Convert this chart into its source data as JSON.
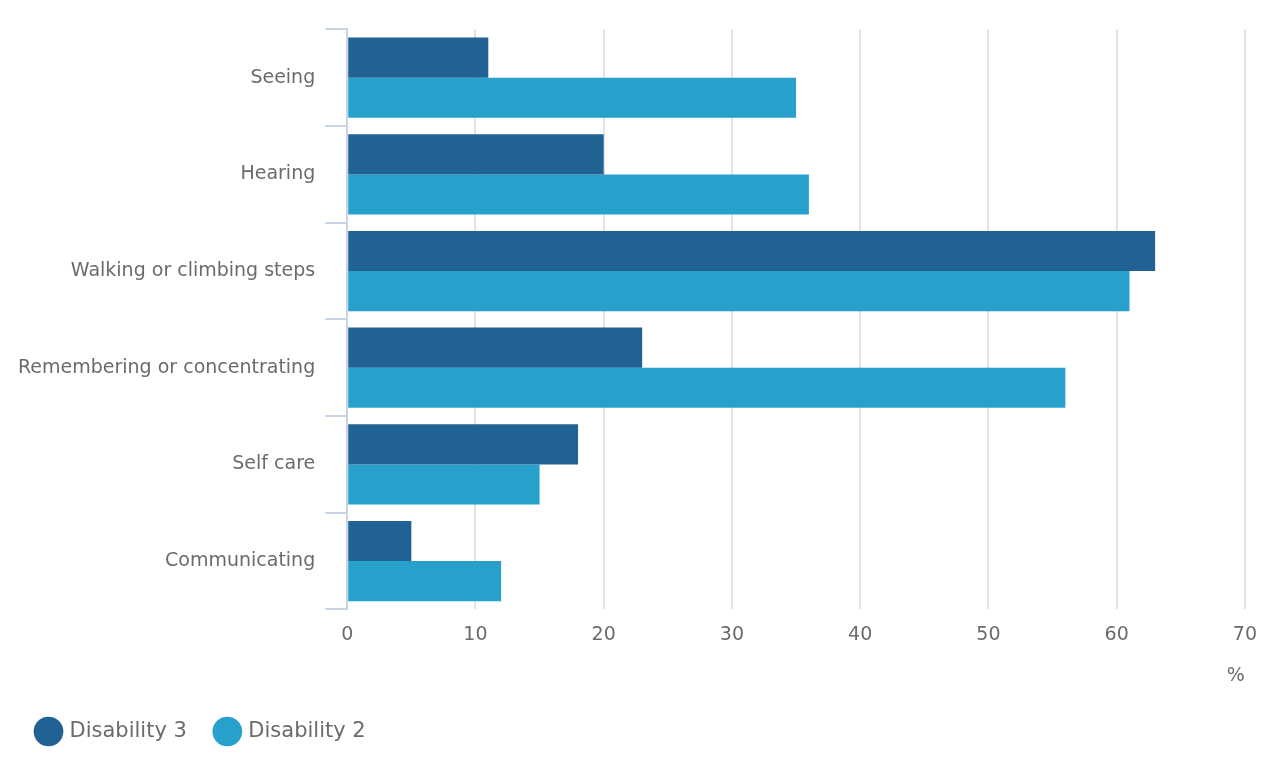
{
  "chart_data": {
    "type": "bar",
    "orientation": "horizontal",
    "xlabel": "%",
    "categories": [
      "Seeing",
      "Hearing",
      "Walking or climbing steps",
      "Remembering or concentrating",
      "Self care",
      "Communicating"
    ],
    "series": [
      {
        "name": "Disability 3",
        "color": "#216294",
        "values": [
          11,
          20,
          63,
          23,
          18,
          5
        ]
      },
      {
        "name": "Disability 2",
        "color": "#27a1cc",
        "values": [
          35,
          36,
          61,
          56,
          15,
          12
        ]
      }
    ],
    "xlim": [
      0,
      70
    ],
    "xticks": [
      0,
      10,
      20,
      30,
      40,
      50,
      60,
      70
    ],
    "grid": "x",
    "legend": "bottom left"
  }
}
